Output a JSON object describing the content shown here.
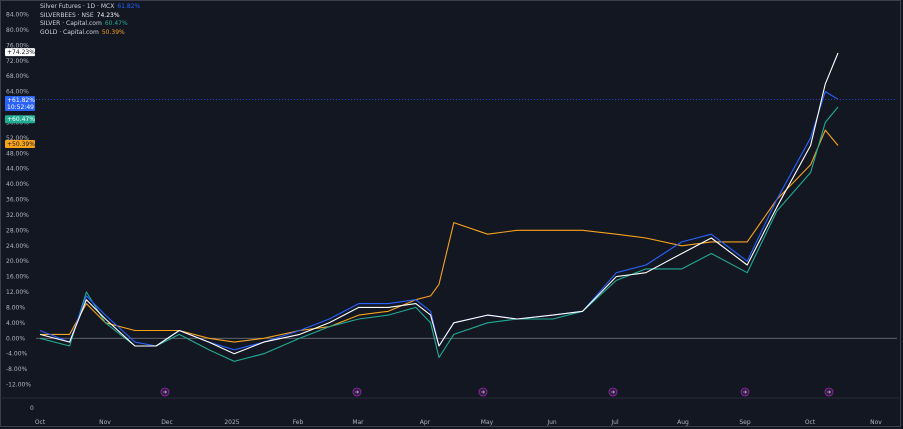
{
  "legend": [
    {
      "name": "Silver Futures · 1D · MCX",
      "value": "61.82%",
      "color": "#2962ff"
    },
    {
      "name": "SILVERBEES · NSE",
      "value": "74.23%",
      "color": "#ffffff"
    },
    {
      "name": "SILVER · Capital.com",
      "value": "60.47%",
      "color": "#22ab94"
    },
    {
      "name": "GOLD · Capital.com",
      "value": "50.39%",
      "color": "#f7a21b"
    }
  ],
  "price_tags": {
    "silverbees": "+74.23%",
    "mcx": "+61.82%",
    "mcx_countdown": "10:52:49",
    "silver_cap": "+60.47%",
    "gold": "+50.39%"
  },
  "left_axis_zero": "0",
  "event_markers": [
    "event",
    "event",
    "event",
    "event",
    "event",
    "event"
  ],
  "chart_data": {
    "type": "line",
    "title": "",
    "xlabel": "",
    "ylabel": "",
    "ylim": [
      -14,
      86
    ],
    "y_ticks": [
      "84.00%",
      "80.00%",
      "76.00%",
      "72.00%",
      "68.00%",
      "64.00%",
      "60.00%",
      "56.00%",
      "52.00%",
      "48.00%",
      "44.00%",
      "40.00%",
      "36.00%",
      "32.00%",
      "28.00%",
      "24.00%",
      "20.00%",
      "16.00%",
      "12.00%",
      "8.00%",
      "4.00%",
      "0.00%",
      "-4.00%",
      "-8.00%",
      "-12.00%"
    ],
    "x_ticks": [
      "Oct",
      "Nov",
      "Dec",
      "2025",
      "Feb",
      "Mar",
      "Apr",
      "May",
      "Jun",
      "Jul",
      "Aug",
      "Sep",
      "Oct",
      "Nov"
    ],
    "x": [
      "2024-10-01",
      "2024-10-15",
      "2024-10-23",
      "2024-11-01",
      "2024-11-15",
      "2024-11-25",
      "2024-12-06",
      "2024-12-20",
      "2025-01-01",
      "2025-01-15",
      "2025-02-01",
      "2025-02-15",
      "2025-03-01",
      "2025-03-15",
      "2025-03-28",
      "2025-04-04",
      "2025-04-08",
      "2025-04-15",
      "2025-05-01",
      "2025-05-15",
      "2025-06-01",
      "2025-06-15",
      "2025-07-01",
      "2025-07-15",
      "2025-08-01",
      "2025-08-15",
      "2025-09-01",
      "2025-09-15",
      "2025-10-01",
      "2025-10-08",
      "2025-10-14"
    ],
    "series": [
      {
        "name": "Silver Futures · 1D · MCX",
        "color": "#2962ff",
        "values": [
          2,
          -1,
          11,
          6,
          -1,
          -2,
          2,
          -1,
          -3,
          -1,
          2,
          5,
          9,
          9,
          10,
          7,
          -2,
          4,
          6,
          5,
          6,
          7,
          17,
          19,
          25,
          27,
          20,
          36,
          52,
          64,
          62
        ]
      },
      {
        "name": "SILVERBEES · NSE",
        "color": "#ffffff",
        "values": [
          1,
          -1,
          10,
          5,
          -2,
          -2,
          2,
          -1,
          -4,
          -1,
          1,
          4,
          8,
          8,
          9,
          6,
          -2,
          4,
          6,
          5,
          6,
          7,
          16,
          17,
          22,
          26,
          19,
          34,
          50,
          66,
          74
        ]
      },
      {
        "name": "SILVER · Capital.com",
        "color": "#22ab94",
        "values": [
          0,
          -2,
          12,
          4,
          -2,
          -2,
          1,
          -3,
          -6,
          -4,
          0,
          3,
          5,
          6,
          8,
          4,
          -5,
          1,
          4,
          5,
          5,
          7,
          15,
          18,
          18,
          22,
          17,
          33,
          43,
          56,
          60
        ]
      },
      {
        "name": "GOLD · Capital.com",
        "color": "#f7a21b",
        "values": [
          1,
          1,
          9,
          4,
          2,
          2,
          2,
          0,
          -1,
          0,
          2,
          3,
          6,
          7,
          10,
          11,
          14,
          30,
          27,
          28,
          28,
          28,
          27,
          26,
          24,
          25,
          25,
          36,
          45,
          54,
          50
        ]
      }
    ]
  }
}
